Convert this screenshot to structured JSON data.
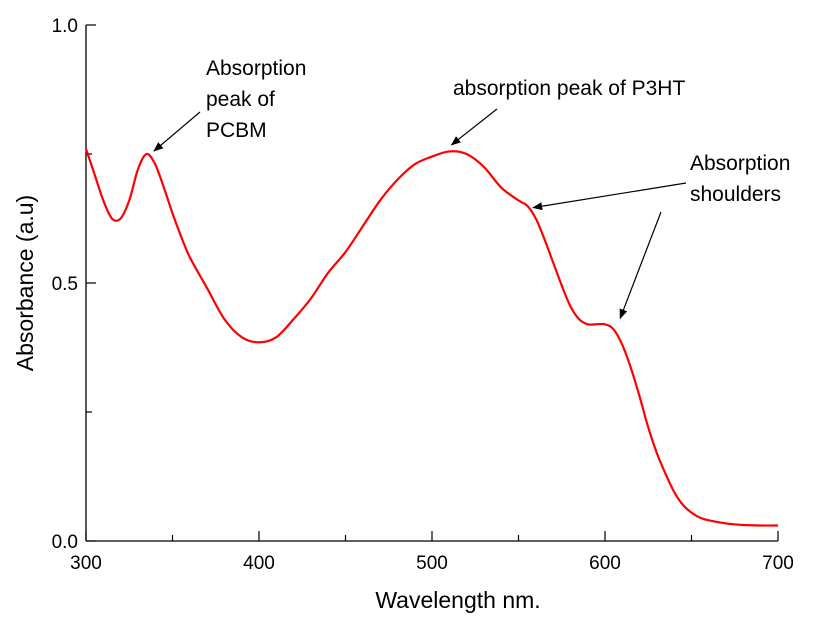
{
  "chart_data": {
    "type": "line",
    "xlabel": "Wavelength nm.",
    "ylabel": "Absorbance (a.u)",
    "xlim": [
      300,
      700
    ],
    "ylim": [
      0.0,
      1.0
    ],
    "x_ticks": [
      300,
      400,
      500,
      600,
      700
    ],
    "x_tick_labels": [
      "300",
      "400",
      "500",
      "600",
      "700"
    ],
    "y_ticks": [
      0.0,
      0.5,
      1.0
    ],
    "y_tick_labels": [
      "0.0",
      "0.5",
      "1.0"
    ],
    "grid": false,
    "series": [
      {
        "color": "#ff0000",
        "x": [
          300,
          305,
          310,
          315,
          320,
          325,
          330,
          335,
          340,
          345,
          350,
          355,
          360,
          370,
          380,
          390,
          400,
          410,
          420,
          430,
          440,
          450,
          460,
          470,
          480,
          490,
          500,
          510,
          520,
          530,
          540,
          550,
          555,
          560,
          565,
          570,
          575,
          580,
          585,
          590,
          595,
          600,
          605,
          610,
          615,
          620,
          625,
          630,
          635,
          640,
          645,
          650,
          655,
          660,
          670,
          680,
          690,
          700
        ],
        "y": [
          0.76,
          0.71,
          0.66,
          0.625,
          0.625,
          0.66,
          0.72,
          0.75,
          0.73,
          0.685,
          0.635,
          0.59,
          0.55,
          0.49,
          0.43,
          0.395,
          0.385,
          0.395,
          0.43,
          0.47,
          0.52,
          0.56,
          0.61,
          0.66,
          0.7,
          0.73,
          0.745,
          0.755,
          0.75,
          0.725,
          0.685,
          0.66,
          0.65,
          0.625,
          0.585,
          0.54,
          0.495,
          0.455,
          0.43,
          0.42,
          0.42,
          0.42,
          0.41,
          0.38,
          0.335,
          0.28,
          0.22,
          0.17,
          0.13,
          0.095,
          0.07,
          0.055,
          0.045,
          0.04,
          0.034,
          0.031,
          0.03,
          0.03
        ]
      }
    ],
    "annotations": [
      {
        "lines": [
          "Absorption",
          "peak of",
          "PCBM"
        ],
        "target": [
          337,
          0.75
        ]
      },
      {
        "lines": [
          "absorption peak of P3HT"
        ],
        "target": [
          513,
          0.76
        ]
      },
      {
        "lines": [
          "Absorption",
          "shoulders"
        ],
        "targets": [
          [
            555,
            0.65
          ],
          [
            603,
            0.42
          ]
        ]
      }
    ]
  }
}
